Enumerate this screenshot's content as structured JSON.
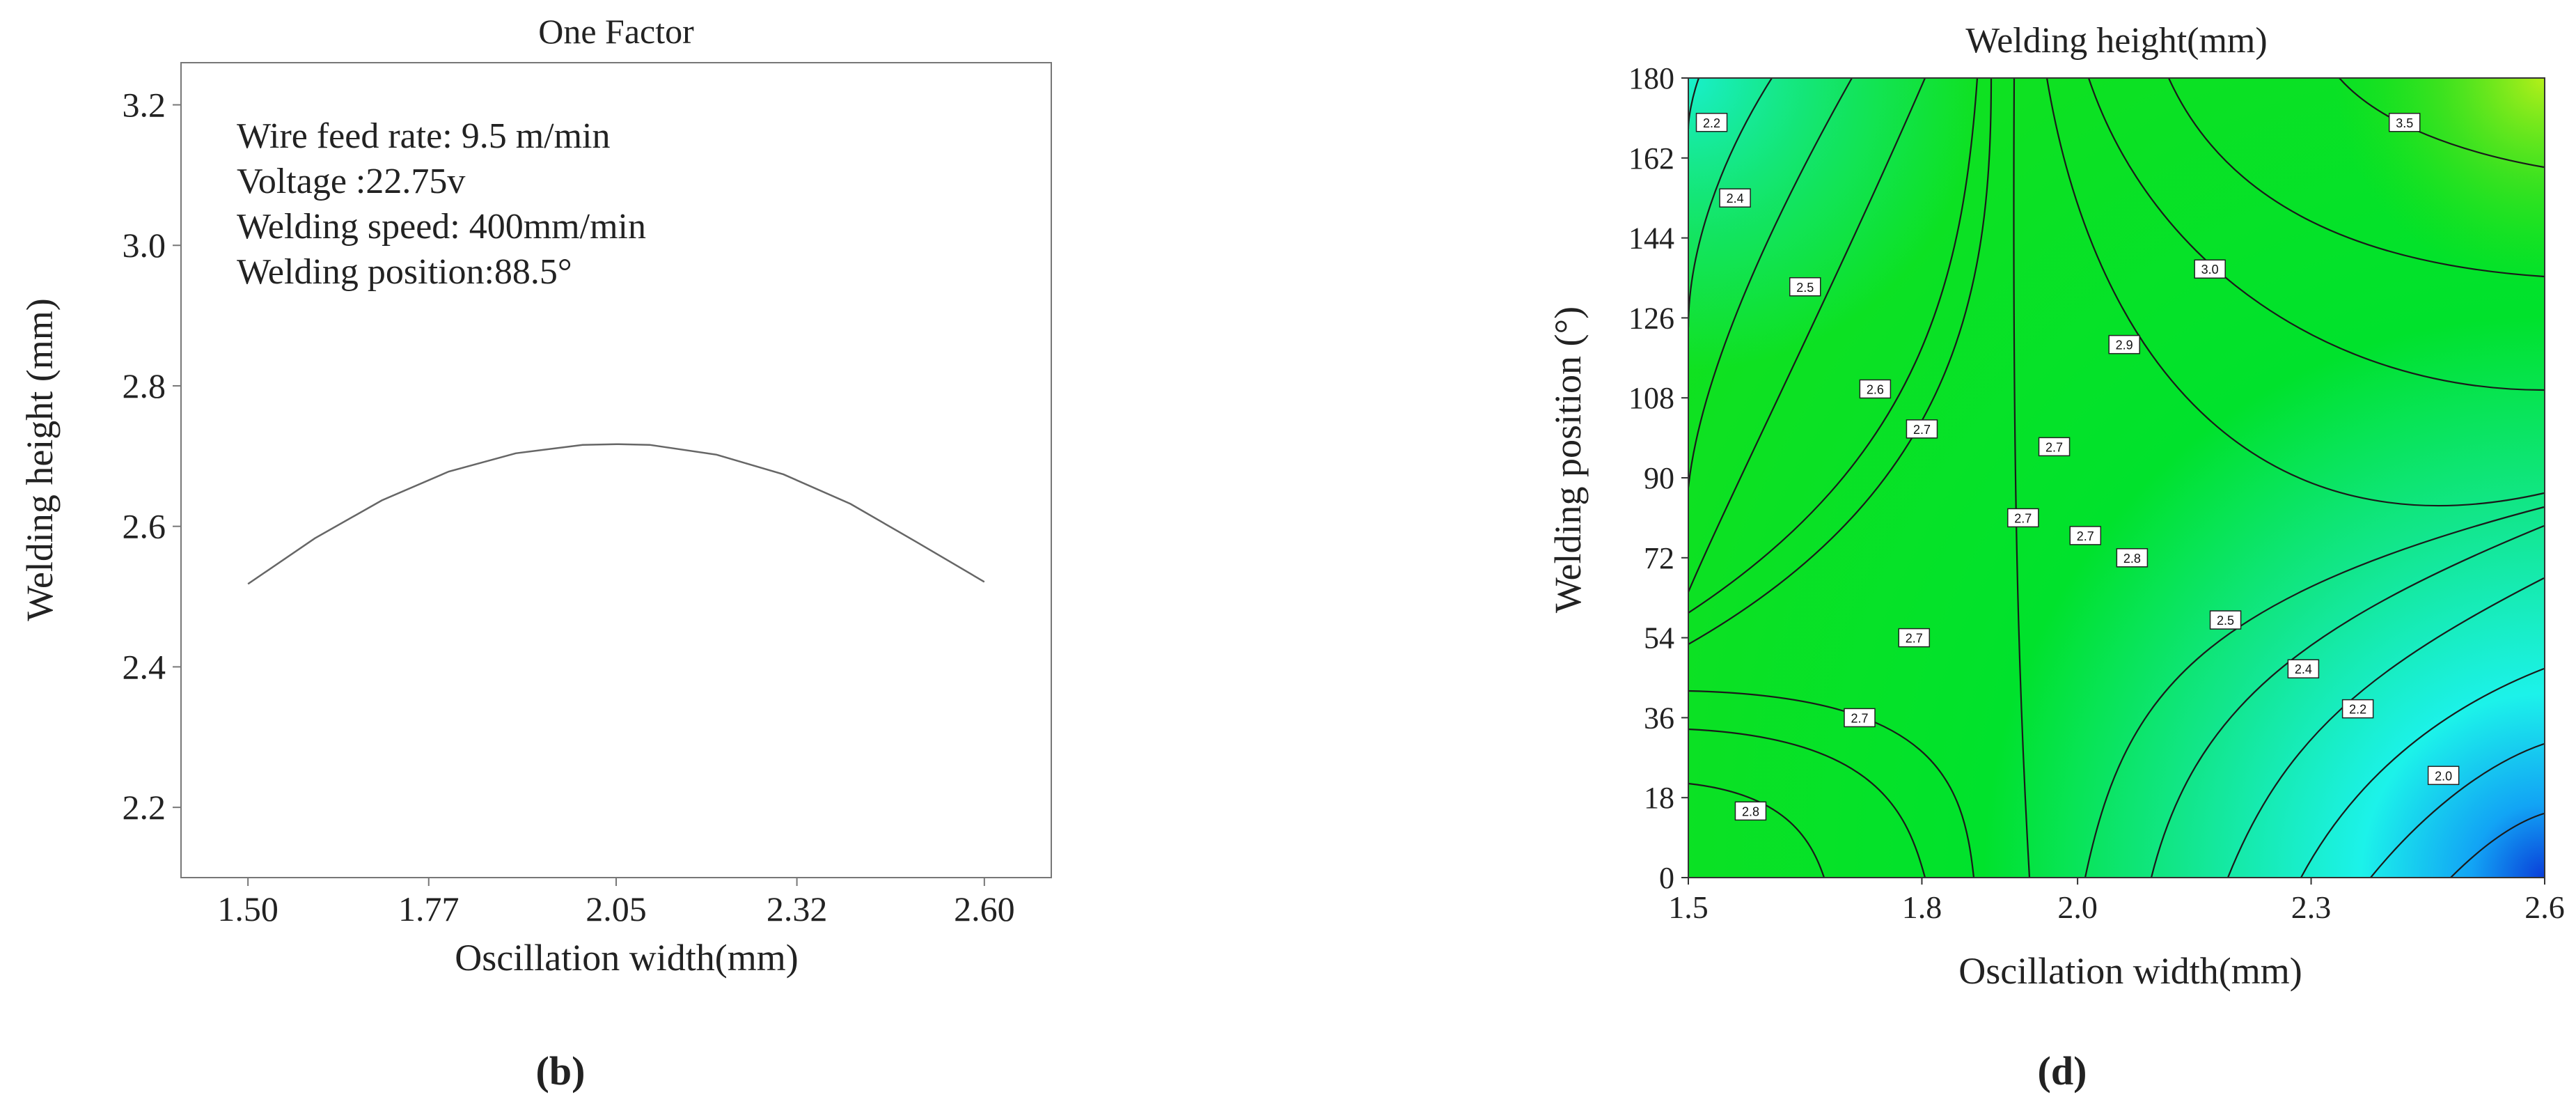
{
  "charts": [
    {
      "panel_label": "(b)",
      "chart_data": {
        "type": "line",
        "title": "One Factor",
        "xlabel": "Oscillation width(mm)",
        "ylabel": "Welding height (mm)",
        "xlim": [
          1.4,
          2.7
        ],
        "ylim": [
          2.1,
          3.26
        ],
        "xticks": [
          1.5,
          1.77,
          2.05,
          2.32,
          2.6
        ],
        "xtick_labels": [
          "1.50",
          "1.77",
          "2.05",
          "2.32",
          "2.60"
        ],
        "yticks": [
          2.2,
          2.4,
          2.6,
          2.8,
          3.0,
          3.2
        ],
        "ytick_labels": [
          "2.2",
          "2.4",
          "2.6",
          "2.8",
          "3.0",
          "3.2"
        ],
        "annotations": [
          "Wire feed rate: 9.5 m/min",
          "Voltage :22.75v",
          "Welding speed: 400mm/min",
          "Welding position:88.5°"
        ],
        "series": [
          {
            "name": "Welding height",
            "x": [
              1.5,
              1.6,
              1.7,
              1.8,
              1.9,
              2.0,
              2.05,
              2.1,
              2.2,
              2.3,
              2.4,
              2.5,
              2.6
            ],
            "y": [
              2.518,
              2.583,
              2.637,
              2.678,
              2.704,
              2.716,
              2.717,
              2.716,
              2.702,
              2.674,
              2.632,
              2.577,
              2.521
            ]
          }
        ]
      }
    },
    {
      "panel_label": "(d)",
      "chart_data": {
        "type": "contour",
        "title": "Welding height(mm)",
        "xlabel": "Oscillation width(mm)",
        "ylabel": "Welding position (°)",
        "xlim": [
          1.5,
          2.6
        ],
        "ylim": [
          0,
          180
        ],
        "xticks": [
          1.5,
          1.8,
          2.0,
          2.3,
          2.6
        ],
        "xtick_labels": [
          "1.5",
          "1.8",
          "2.0",
          "2.3",
          "2.6"
        ],
        "yticks": [
          0,
          18,
          36,
          54,
          72,
          90,
          108,
          126,
          144,
          162,
          180
        ],
        "ytick_labels": [
          "0",
          "18",
          "36",
          "54",
          "72",
          "90",
          "108",
          "126",
          "144",
          "162",
          "180"
        ],
        "colormap": [
          "#0a3fd9",
          "#12a4f5",
          "#1cf2ea",
          "#12e68a",
          "#00e22c",
          "#2adf12",
          "#a6ee18"
        ],
        "contour_labels": [
          {
            "text": "2.2",
            "x": 1.53,
            "y": 170
          },
          {
            "text": "2.4",
            "x": 1.56,
            "y": 153
          },
          {
            "text": "2.5",
            "x": 1.65,
            "y": 133
          },
          {
            "text": "2.6",
            "x": 1.74,
            "y": 110
          },
          {
            "text": "2.7",
            "x": 1.8,
            "y": 101
          },
          {
            "text": "3.5",
            "x": 2.42,
            "y": 170
          },
          {
            "text": "3.0",
            "x": 2.17,
            "y": 137
          },
          {
            "text": "2.9",
            "x": 2.06,
            "y": 120
          },
          {
            "text": "2.7",
            "x": 1.97,
            "y": 97
          },
          {
            "text": "2.7",
            "x": 1.93,
            "y": 81
          },
          {
            "text": "2.7",
            "x": 2.01,
            "y": 77
          },
          {
            "text": "2.8",
            "x": 2.07,
            "y": 72
          },
          {
            "text": "2.7",
            "x": 1.79,
            "y": 54
          },
          {
            "text": "2.7",
            "x": 1.72,
            "y": 36
          },
          {
            "text": "2.8",
            "x": 1.58,
            "y": 15
          },
          {
            "text": "2.5",
            "x": 2.19,
            "y": 58
          },
          {
            "text": "2.4",
            "x": 2.29,
            "y": 47
          },
          {
            "text": "2.2",
            "x": 2.36,
            "y": 38
          },
          {
            "text": "2.0",
            "x": 2.47,
            "y": 23
          }
        ]
      }
    }
  ]
}
